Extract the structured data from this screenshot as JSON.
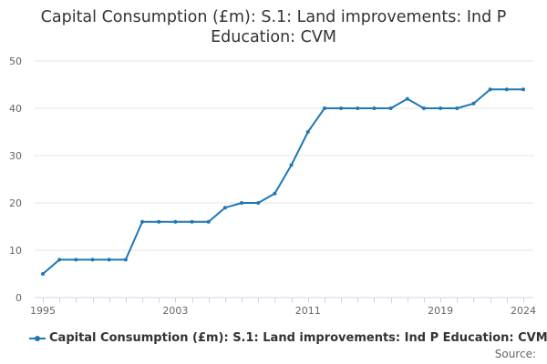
{
  "chart_data": {
    "type": "line",
    "title_line1": "Capital Consumption (£m): S.1: Land improvements: Ind P",
    "title_line2": "Education: CVM",
    "xlabel": "",
    "ylabel": "",
    "x": [
      1995,
      1996,
      1997,
      1998,
      1999,
      2000,
      2001,
      2002,
      2003,
      2004,
      2005,
      2006,
      2007,
      2008,
      2009,
      2010,
      2011,
      2012,
      2013,
      2014,
      2015,
      2016,
      2017,
      2018,
      2019,
      2020,
      2021,
      2022,
      2023,
      2024
    ],
    "series": [
      {
        "name": "Capital Consumption (£m): S.1: Land improvements: Ind P Education: CVM",
        "values": [
          5,
          8,
          8,
          8,
          8,
          8,
          16,
          16,
          16,
          16,
          16,
          19,
          20,
          20,
          22,
          28,
          35,
          40,
          40,
          40,
          40,
          40,
          42,
          40,
          40,
          40,
          41,
          44,
          44,
          44
        ]
      }
    ],
    "x_ticks": [
      1995,
      2003,
      2011,
      2019,
      2024
    ],
    "y_ticks": [
      0,
      10,
      20,
      30,
      40,
      50
    ],
    "ylim": [
      0,
      50
    ],
    "xlim": [
      1995,
      2024
    ],
    "grid": true,
    "legend_position": "bottom",
    "series_color": "#1f77b4"
  },
  "source_label": "Source:"
}
